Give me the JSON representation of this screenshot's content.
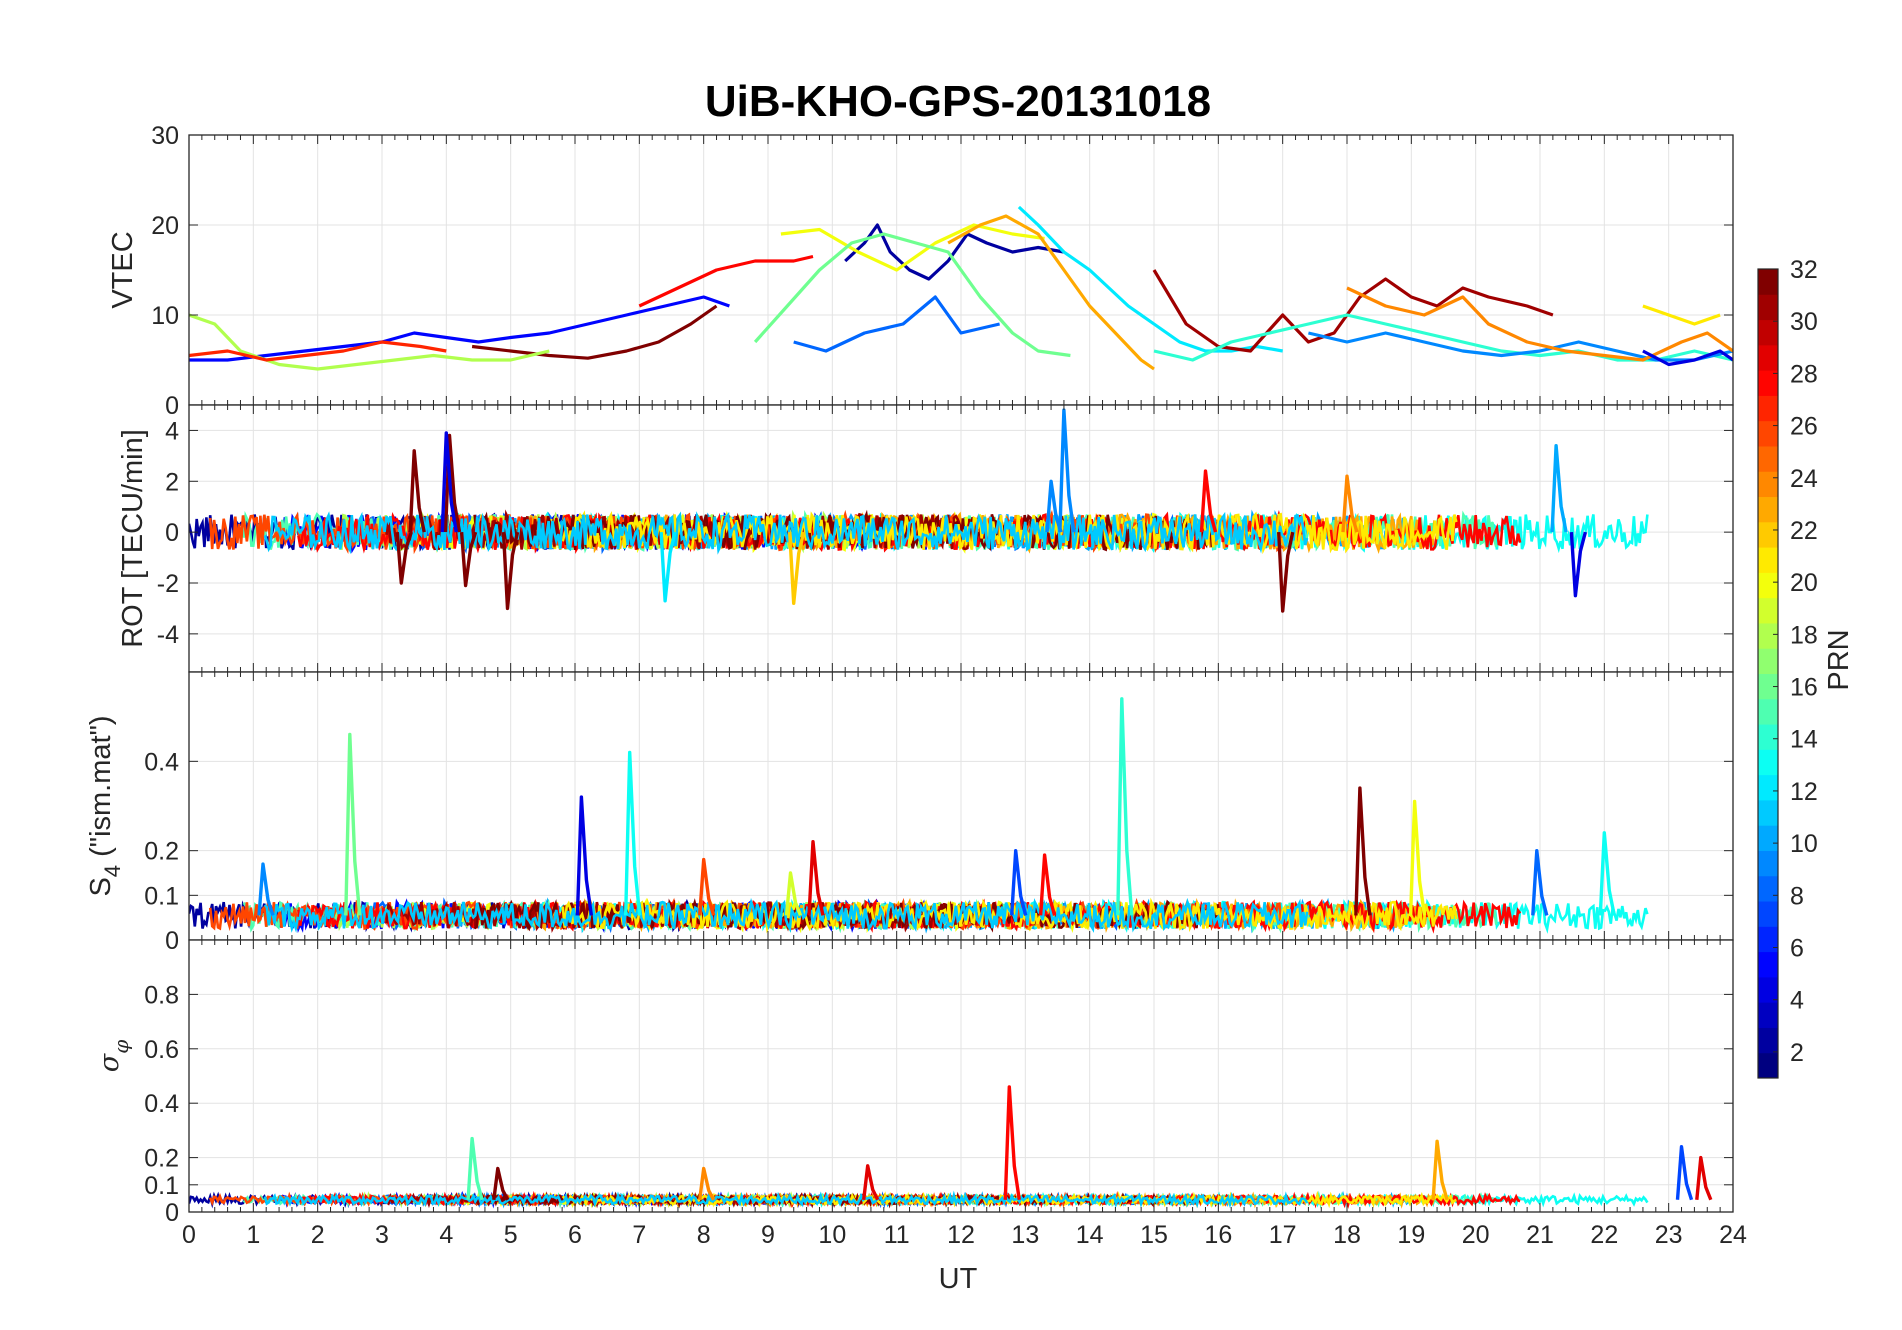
{
  "chart_data": {
    "type": "line",
    "title": "UiB-KHO-GPS-20131018",
    "xlabel": "UT",
    "x_ticks": [
      "0",
      "1",
      "2",
      "3",
      "4",
      "5",
      "6",
      "7",
      "8",
      "9",
      "10",
      "11",
      "12",
      "13",
      "14",
      "15",
      "16",
      "17",
      "18",
      "19",
      "20",
      "21",
      "22",
      "23",
      "24"
    ],
    "xlim": [
      0,
      24
    ],
    "grid": true,
    "colorbar": {
      "label": "PRN",
      "range": [
        1,
        32
      ],
      "ticks": [
        "2",
        "4",
        "6",
        "8",
        "10",
        "12",
        "14",
        "16",
        "18",
        "20",
        "22",
        "24",
        "26",
        "28",
        "30",
        "32"
      ],
      "colormap": "jet"
    },
    "panels": [
      {
        "id": "vtec",
        "ylabel": "VTEC",
        "ylim": [
          0,
          30
        ],
        "y_ticks": [
          {
            "v": 0,
            "t": "0"
          },
          {
            "v": 10,
            "t": "10"
          },
          {
            "v": 20,
            "t": "20"
          },
          {
            "v": 30,
            "t": "30"
          }
        ],
        "series": [
          {
            "prn": 5,
            "x": [
              0,
              0.6,
              1.2,
              1.8,
              2.4,
              3.0,
              3.5,
              4.0,
              4.5,
              5.0,
              5.6,
              6.2,
              6.8,
              7.4,
              8.0,
              8.4
            ],
            "y": [
              5,
              5,
              5.5,
              6,
              6.5,
              7,
              8,
              7.5,
              7,
              7.5,
              8,
              9,
              10,
              11,
              12,
              11
            ]
          },
          {
            "prn": 2,
            "x": [
              10.2,
              10.5,
              10.7,
              10.9,
              11.2,
              11.5,
              11.8,
              12.1,
              12.4,
              12.8,
              13.2,
              13.6
            ],
            "y": [
              16,
              18,
              20,
              17,
              15,
              14,
              16,
              19,
              18,
              17,
              17.5,
              17
            ]
          },
          {
            "prn": 12,
            "x": [
              12.9,
              13.2,
              13.6,
              14.0,
              14.3,
              14.6,
              15.0,
              15.4,
              15.8,
              16.2,
              16.6,
              17.0
            ],
            "y": [
              22,
              20,
              17,
              15,
              13,
              11,
              9,
              7,
              6,
              6,
              6.5,
              6
            ]
          },
          {
            "prn": 20,
            "x": [
              9.2,
              9.8,
              10.4,
              11.0,
              11.6,
              12.2,
              12.8,
              13.3
            ],
            "y": [
              19,
              19.5,
              17,
              15,
              18,
              20,
              19,
              18.5
            ]
          },
          {
            "prn": 23,
            "x": [
              11.8,
              12.3,
              12.7,
              13.2,
              13.6,
              14.0,
              14.4,
              14.8,
              15.0
            ],
            "y": [
              18,
              20,
              21,
              19,
              15,
              11,
              8,
              5,
              4
            ]
          },
          {
            "prn": 28,
            "x": [
              7.0,
              7.6,
              8.2,
              8.8,
              9.4,
              9.7
            ],
            "y": [
              11,
              13,
              15,
              16,
              16,
              16.5
            ]
          },
          {
            "prn": 32,
            "x": [
              4.4,
              5.0,
              5.6,
              6.2,
              6.8,
              7.3,
              7.8,
              8.2
            ],
            "y": [
              6.5,
              6,
              5.5,
              5.2,
              6,
              7,
              9,
              11
            ]
          },
          {
            "prn": 16,
            "x": [
              8.8,
              9.3,
              9.8,
              10.3,
              10.8,
              11.3,
              11.8,
              12.3,
              12.8,
              13.2,
              13.7
            ],
            "y": [
              7,
              11,
              15,
              18,
              19,
              18,
              17,
              12,
              8,
              6,
              5.5
            ]
          },
          {
            "prn": 8,
            "x": [
              9.4,
              9.9,
              10.5,
              11.1,
              11.6,
              12.0,
              12.6
            ],
            "y": [
              7,
              6,
              8,
              9,
              12,
              8,
              9
            ]
          },
          {
            "prn": 18,
            "x": [
              0,
              0.4,
              0.8,
              1.4,
              2.0,
              2.6,
              3.2,
              3.8,
              4.4,
              5.0,
              5.6
            ],
            "y": [
              10,
              9,
              6,
              4.5,
              4,
              4.5,
              5,
              5.5,
              5,
              5,
              6
            ]
          },
          {
            "prn": 31,
            "x": [
              15.0,
              15.5,
              16.0,
              16.5,
              17.0,
              17.4,
              17.8,
              18.2,
              18.6,
              19.0,
              19.4,
              19.8,
              20.2,
              20.8,
              21.2
            ],
            "y": [
              15,
              9,
              6.5,
              6,
              10,
              7,
              8,
              12,
              14,
              12,
              11,
              13,
              12,
              11,
              10
            ]
          },
          {
            "prn": 14,
            "x": [
              15.0,
              15.6,
              16.2,
              16.8,
              17.4,
              18.0,
              18.6,
              19.2,
              19.8,
              20.4,
              21.0,
              21.6,
              22.2,
              22.8,
              23.4,
              24.0
            ],
            "y": [
              6,
              5,
              7,
              8,
              9,
              10,
              9,
              8,
              7,
              6,
              5.5,
              6,
              5,
              5,
              6,
              5
            ]
          },
          {
            "prn": 9,
            "x": [
              17.4,
              18.0,
              18.6,
              19.2,
              19.8,
              20.4,
              21.0,
              21.6,
              22.2,
              22.8,
              23.4,
              24.0
            ],
            "y": [
              8,
              7,
              8,
              7,
              6,
              5.5,
              6,
              7,
              6,
              5,
              5,
              6
            ]
          },
          {
            "prn": 24,
            "x": [
              18.0,
              18.6,
              19.2,
              19.8,
              20.2,
              20.8,
              21.4,
              22.0,
              22.6,
              23.2,
              23.6,
              24.0
            ],
            "y": [
              13,
              11,
              10,
              12,
              9,
              7,
              6,
              5.5,
              5,
              7,
              8,
              6
            ]
          },
          {
            "prn": 27,
            "x": [
              0,
              0.6,
              1.2,
              1.8,
              2.4,
              3.0,
              3.6,
              4.0
            ],
            "y": [
              5.5,
              6,
              5,
              5.5,
              6,
              7,
              6.5,
              6
            ]
          },
          {
            "prn": 4,
            "x": [
              22.6,
              23.0,
              23.4,
              23.8,
              24.0
            ],
            "y": [
              6,
              4.5,
              5,
              6,
              5
            ]
          },
          {
            "prn": 21,
            "x": [
              22.6,
              23.0,
              23.4,
              23.8
            ],
            "y": [
              11,
              10,
              9,
              10
            ]
          }
        ]
      },
      {
        "id": "rot",
        "ylabel": "ROT [TECU/min]",
        "ylim": [
          -5.5,
          5
        ],
        "y_ticks": [
          {
            "v": -4,
            "t": "-4"
          },
          {
            "v": -2,
            "t": "-2"
          },
          {
            "v": 0,
            "t": "0"
          },
          {
            "v": 2,
            "t": "2"
          },
          {
            "v": 4,
            "t": "4"
          }
        ],
        "spikes": [
          {
            "prn": 32,
            "x": 3.3,
            "y": -2.0
          },
          {
            "prn": 32,
            "x": 3.5,
            "y": 3.2
          },
          {
            "prn": 32,
            "x": 4.05,
            "y": 3.8
          },
          {
            "prn": 32,
            "x": 4.3,
            "y": -2.1
          },
          {
            "prn": 4,
            "x": 4.0,
            "y": 3.9
          },
          {
            "prn": 32,
            "x": 4.95,
            "y": -3.0
          },
          {
            "prn": 9,
            "x": 13.6,
            "y": 4.8
          },
          {
            "prn": 9,
            "x": 13.4,
            "y": 2.0
          },
          {
            "prn": 32,
            "x": 17.0,
            "y": -3.1
          },
          {
            "prn": 10,
            "x": 21.25,
            "y": 3.4
          },
          {
            "prn": 4,
            "x": 21.55,
            "y": -2.5
          },
          {
            "prn": 22,
            "x": 9.4,
            "y": -2.8
          },
          {
            "prn": 12,
            "x": 7.4,
            "y": -2.7
          },
          {
            "prn": 24,
            "x": 18.0,
            "y": 2.2
          },
          {
            "prn": 28,
            "x": 15.8,
            "y": 2.4
          }
        ]
      },
      {
        "id": "s4",
        "ylabel": "S4 (\"ism.mat\")",
        "ylim": [
          0,
          0.6
        ],
        "y_ticks": [
          {
            "v": 0,
            "t": "0"
          },
          {
            "v": 0.1,
            "t": "0.1"
          },
          {
            "v": 0.2,
            "t": "0.2"
          },
          {
            "v": 0.4,
            "t": "0.4"
          }
        ],
        "spikes": [
          {
            "prn": 16,
            "x": 2.5,
            "y": 0.46
          },
          {
            "prn": 4,
            "x": 6.1,
            "y": 0.32
          },
          {
            "prn": 13,
            "x": 6.85,
            "y": 0.42
          },
          {
            "prn": 26,
            "x": 8.0,
            "y": 0.18
          },
          {
            "prn": 29,
            "x": 9.7,
            "y": 0.22
          },
          {
            "prn": 19,
            "x": 9.35,
            "y": 0.15
          },
          {
            "prn": 7,
            "x": 12.85,
            "y": 0.2
          },
          {
            "prn": 28,
            "x": 13.3,
            "y": 0.19
          },
          {
            "prn": 14,
            "x": 14.5,
            "y": 0.54
          },
          {
            "prn": 32,
            "x": 18.2,
            "y": 0.34
          },
          {
            "prn": 20,
            "x": 19.05,
            "y": 0.31
          },
          {
            "prn": 8,
            "x": 20.95,
            "y": 0.2
          },
          {
            "prn": 13,
            "x": 22.0,
            "y": 0.24
          },
          {
            "prn": 9,
            "x": 1.15,
            "y": 0.17
          }
        ]
      },
      {
        "id": "sigma",
        "ylabel": "σφ",
        "ylim": [
          0,
          1.0
        ],
        "y_ticks": [
          {
            "v": 0,
            "t": "0"
          },
          {
            "v": 0.1,
            "t": "0.1"
          },
          {
            "v": 0.2,
            "t": "0.2"
          },
          {
            "v": 0.4,
            "t": "0.4"
          },
          {
            "v": 0.6,
            "t": "0.6"
          },
          {
            "v": 0.8,
            "t": "0.8"
          }
        ],
        "spikes": [
          {
            "prn": 15,
            "x": 4.4,
            "y": 0.27
          },
          {
            "prn": 28,
            "x": 12.75,
            "y": 0.46
          },
          {
            "prn": 23,
            "x": 19.4,
            "y": 0.26
          },
          {
            "prn": 29,
            "x": 10.55,
            "y": 0.17
          },
          {
            "prn": 24,
            "x": 8.0,
            "y": 0.16
          },
          {
            "prn": 7,
            "x": 23.2,
            "y": 0.24
          },
          {
            "prn": 29,
            "x": 23.5,
            "y": 0.2
          },
          {
            "prn": 32,
            "x": 4.8,
            "y": 0.16
          }
        ]
      }
    ]
  }
}
